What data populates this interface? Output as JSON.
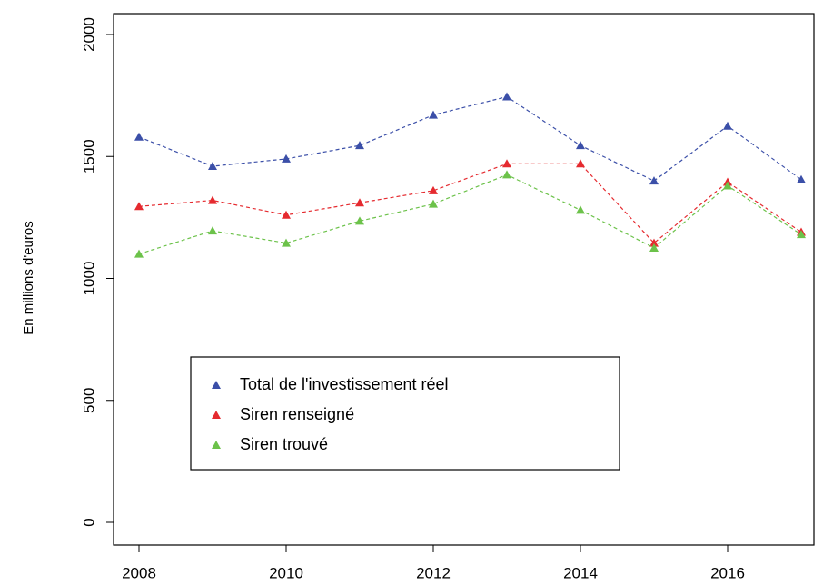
{
  "chart_data": {
    "type": "line",
    "y_label": "En millions d'euros",
    "x": [
      2008,
      2009,
      2010,
      2011,
      2012,
      2013,
      2014,
      2015,
      2016,
      2017
    ],
    "xlim": [
      2008,
      2017
    ],
    "xticks": [
      2008,
      2010,
      2012,
      2014,
      2016
    ],
    "ylim": [
      0,
      2000
    ],
    "yticks": [
      0,
      500,
      1000,
      1500,
      2000
    ],
    "line_style": "dashed",
    "marker": "triangle",
    "legend": "center-left",
    "series": [
      {
        "name": "Total de l'investissement réel",
        "color": "#3b4fa8",
        "values": [
          1580,
          1460,
          1490,
          1545,
          1670,
          1745,
          1545,
          1400,
          1625,
          1405
        ]
      },
      {
        "name": "Siren renseigné",
        "color": "#e52a2f",
        "values": [
          1295,
          1320,
          1260,
          1310,
          1360,
          1470,
          1470,
          1145,
          1395,
          1190
        ]
      },
      {
        "name": "Siren trouvé",
        "color": "#6cc24a",
        "values": [
          1100,
          1195,
          1145,
          1235,
          1305,
          1425,
          1280,
          1125,
          1380,
          1180
        ]
      }
    ]
  }
}
